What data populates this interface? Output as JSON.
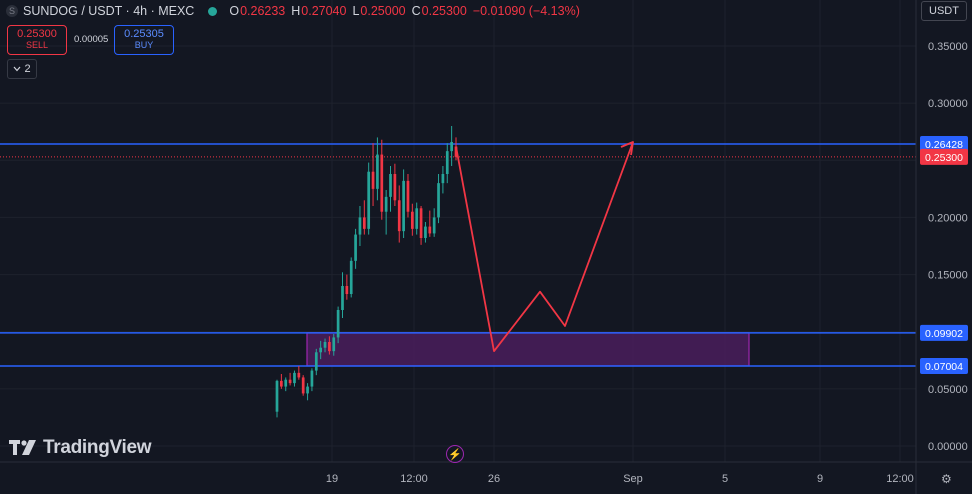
{
  "header": {
    "symbol_icon": "S",
    "title": "SUNDOG / USDT · 4h · MEXC",
    "ohlc": [
      {
        "k": "O",
        "v": "0.26233"
      },
      {
        "k": "H",
        "v": "0.27040"
      },
      {
        "k": "L",
        "v": "0.25000"
      },
      {
        "k": "C",
        "v": "0.25300"
      }
    ],
    "change": "−0.01090 (−4.13%)"
  },
  "trade": {
    "sell_price": "0.25300",
    "sell_label": "SELL",
    "spread": "0.00005",
    "buy_price": "0.25305",
    "buy_label": "BUY"
  },
  "legend_toggle": "2",
  "currency": "USDT",
  "logo_text": "TradingView",
  "colors": {
    "background": "#131722",
    "up": "#26a69a",
    "down": "#f23645",
    "level_line": "#2962ff",
    "zone_fill": "#4a1d5c",
    "zone_border": "#9c27b0",
    "projection": "#f23645"
  },
  "chart_data": {
    "type": "candlestick",
    "y_ticks": [
      "0.35000",
      "0.30000",
      "0.25000",
      "0.20000",
      "0.15000",
      "0.10000",
      "0.05000",
      "0.00000"
    ],
    "y_tick_values": [
      0.35,
      0.3,
      0.25,
      0.2,
      0.15,
      0.1,
      0.05,
      0.0
    ],
    "ylim": [
      -0.005,
      0.385
    ],
    "x_ticks": [
      "19",
      "12:00",
      "26",
      "Sep",
      "5",
      "9",
      "12:00"
    ],
    "grid": true,
    "levels": [
      {
        "value": 0.26428,
        "label": "0.26428",
        "color": "#2962ff"
      },
      {
        "value": 0.099,
        "label": "0.09902",
        "color": "#2962ff"
      },
      {
        "value": 0.07004,
        "label": "0.07004",
        "color": "#2962ff"
      }
    ],
    "last_price": {
      "value": 0.253,
      "label": "0.25300",
      "color": "#f23645"
    },
    "zone": {
      "from_tick": "19",
      "to_tick": "5",
      "low": 0.07004,
      "high": 0.09902
    },
    "projection": [
      0.262,
      0.083,
      0.135,
      0.105,
      0.266
    ],
    "candles": [
      [
        0.03,
        0.058,
        0.025,
        0.057
      ],
      [
        0.057,
        0.063,
        0.05,
        0.052
      ],
      [
        0.052,
        0.06,
        0.048,
        0.058
      ],
      [
        0.058,
        0.064,
        0.053,
        0.055
      ],
      [
        0.055,
        0.066,
        0.052,
        0.064
      ],
      [
        0.064,
        0.07,
        0.058,
        0.06
      ],
      [
        0.06,
        0.062,
        0.044,
        0.046
      ],
      [
        0.046,
        0.055,
        0.04,
        0.052
      ],
      [
        0.052,
        0.068,
        0.048,
        0.066
      ],
      [
        0.066,
        0.085,
        0.062,
        0.082
      ],
      [
        0.082,
        0.092,
        0.076,
        0.086
      ],
      [
        0.086,
        0.094,
        0.082,
        0.091
      ],
      [
        0.091,
        0.096,
        0.08,
        0.083
      ],
      [
        0.083,
        0.098,
        0.079,
        0.095
      ],
      [
        0.095,
        0.122,
        0.09,
        0.119
      ],
      [
        0.119,
        0.152,
        0.112,
        0.14
      ],
      [
        0.14,
        0.15,
        0.128,
        0.133
      ],
      [
        0.133,
        0.165,
        0.13,
        0.162
      ],
      [
        0.162,
        0.19,
        0.155,
        0.185
      ],
      [
        0.185,
        0.21,
        0.175,
        0.2
      ],
      [
        0.2,
        0.215,
        0.185,
        0.19
      ],
      [
        0.19,
        0.248,
        0.185,
        0.24
      ],
      [
        0.24,
        0.265,
        0.21,
        0.225
      ],
      [
        0.225,
        0.27,
        0.215,
        0.255
      ],
      [
        0.255,
        0.268,
        0.198,
        0.205
      ],
      [
        0.205,
        0.224,
        0.185,
        0.218
      ],
      [
        0.218,
        0.245,
        0.205,
        0.238
      ],
      [
        0.238,
        0.247,
        0.21,
        0.215
      ],
      [
        0.215,
        0.228,
        0.178,
        0.188
      ],
      [
        0.188,
        0.242,
        0.182,
        0.232
      ],
      [
        0.232,
        0.238,
        0.2,
        0.205
      ],
      [
        0.205,
        0.212,
        0.184,
        0.19
      ],
      [
        0.19,
        0.213,
        0.185,
        0.208
      ],
      [
        0.208,
        0.21,
        0.176,
        0.182
      ],
      [
        0.182,
        0.196,
        0.178,
        0.192
      ],
      [
        0.192,
        0.206,
        0.183,
        0.186
      ],
      [
        0.186,
        0.208,
        0.183,
        0.2
      ],
      [
        0.2,
        0.238,
        0.195,
        0.23
      ],
      [
        0.23,
        0.245,
        0.221,
        0.238
      ],
      [
        0.238,
        0.265,
        0.23,
        0.258
      ],
      [
        0.258,
        0.28,
        0.245,
        0.266
      ],
      [
        0.262,
        0.27,
        0.25,
        0.253
      ]
    ]
  }
}
